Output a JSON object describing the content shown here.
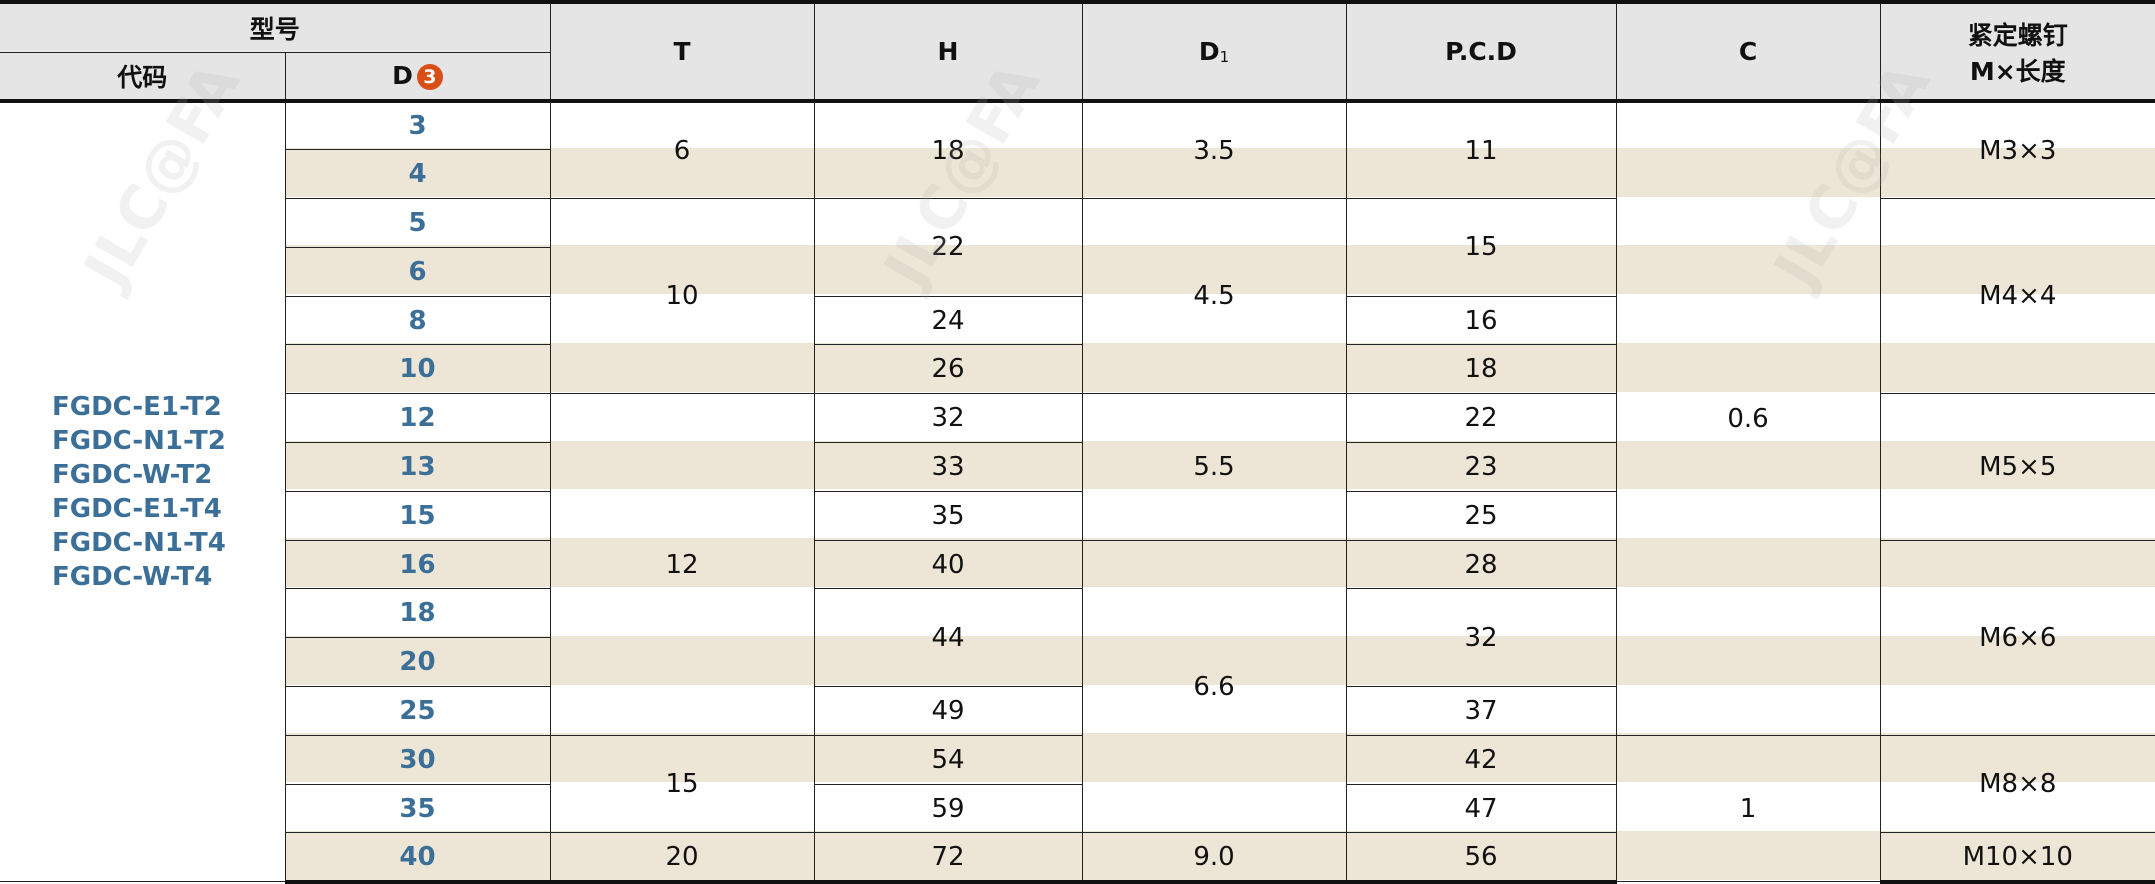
{
  "header": {
    "model_group": "型号",
    "code": "代码",
    "d": "D",
    "d_badge": "3",
    "t": "T",
    "h": "H",
    "d1_main": "D",
    "d1_sub": "1",
    "pcd": "P.C.D",
    "c": "C",
    "screw_line1": "紧定螺钉",
    "screw_line2": "M×长度"
  },
  "codes": [
    "FGDC-E1-T2",
    "FGDC-N1-T2",
    "FGDC-W-T2",
    "FGDC-E1-T4",
    "FGDC-N1-T4",
    "FGDC-W-T4"
  ],
  "d_values": [
    "3",
    "4",
    "5",
    "6",
    "8",
    "10",
    "12",
    "13",
    "15",
    "16",
    "18",
    "20",
    "25",
    "30",
    "35",
    "40"
  ],
  "columns": {
    "t": [
      {
        "v": "6",
        "span": 2
      },
      {
        "v": "10",
        "span": 4
      },
      {
        "v": "12",
        "span": 7
      },
      {
        "v": "15",
        "span": 2
      },
      {
        "v": "20",
        "span": 1
      }
    ],
    "h": [
      {
        "v": "18",
        "span": 2
      },
      {
        "v": "22",
        "span": 2
      },
      {
        "v": "24",
        "span": 1
      },
      {
        "v": "26",
        "span": 1
      },
      {
        "v": "32",
        "span": 1
      },
      {
        "v": "33",
        "span": 1
      },
      {
        "v": "35",
        "span": 1
      },
      {
        "v": "40",
        "span": 1
      },
      {
        "v": "44",
        "span": 2
      },
      {
        "v": "49",
        "span": 1
      },
      {
        "v": "54",
        "span": 1
      },
      {
        "v": "59",
        "span": 1
      },
      {
        "v": "72",
        "span": 1
      }
    ],
    "d1": [
      {
        "v": "3.5",
        "span": 2
      },
      {
        "v": "4.5",
        "span": 4
      },
      {
        "v": "5.5",
        "span": 3
      },
      {
        "v": "6.6",
        "span": 6
      },
      {
        "v": "9.0",
        "span": 1
      }
    ],
    "pcd": [
      {
        "v": "11",
        "span": 2
      },
      {
        "v": "15",
        "span": 2
      },
      {
        "v": "16",
        "span": 1
      },
      {
        "v": "18",
        "span": 1
      },
      {
        "v": "22",
        "span": 1
      },
      {
        "v": "23",
        "span": 1
      },
      {
        "v": "25",
        "span": 1
      },
      {
        "v": "28",
        "span": 1
      },
      {
        "v": "32",
        "span": 2
      },
      {
        "v": "37",
        "span": 1
      },
      {
        "v": "42",
        "span": 1
      },
      {
        "v": "47",
        "span": 1
      },
      {
        "v": "56",
        "span": 1
      }
    ],
    "c": [
      {
        "v": "0.6",
        "span": 13
      },
      {
        "v": "1",
        "span": 3
      }
    ],
    "screw": [
      {
        "v": "M3×3",
        "span": 2
      },
      {
        "v": "M4×4",
        "span": 4
      },
      {
        "v": "M5×5",
        "span": 3
      },
      {
        "v": "M6×6",
        "span": 4
      },
      {
        "v": "M8×8",
        "span": 2
      },
      {
        "v": "M10×10",
        "span": 1
      }
    ]
  },
  "watermark": "JLC@FA 嘉立创FA WWW.JLCFA.COM",
  "colors": {
    "stripe": "#ede6d6",
    "code_text": "#3c6f98",
    "badge": "#d94f16",
    "header_bg": "#e5e5e5"
  }
}
